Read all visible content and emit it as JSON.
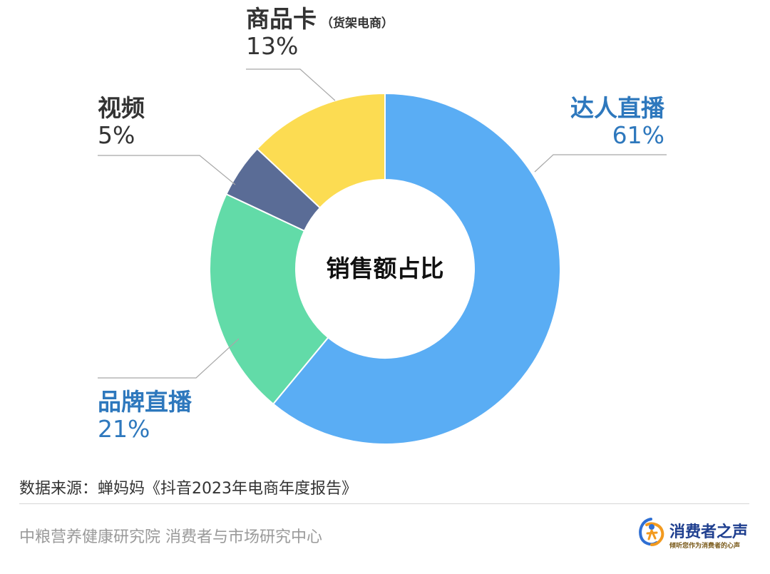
{
  "chart_data": {
    "type": "pie",
    "variant": "donut",
    "center_label": "销售额占比",
    "slices": [
      {
        "name": "达人直播",
        "value": 61,
        "label": "61%",
        "color": "#5aadf4",
        "label_color": "#2e78bd"
      },
      {
        "name": "品牌直播",
        "value": 21,
        "label": "21%",
        "color": "#62dba8",
        "label_color": "#2e78bd"
      },
      {
        "name": "视频",
        "value": 5,
        "label": "5%",
        "color": "#5a6c96",
        "label_color": "#333333"
      },
      {
        "name": "商品卡",
        "note": "（货架电商）",
        "value": 13,
        "label": "13%",
        "color": "#fcdc52",
        "label_color": "#333333"
      }
    ]
  },
  "source": "数据来源：蝉妈妈《抖音2023年电商年度报告》",
  "footer": {
    "org": "中粮营养健康研究院 消费者与市场研究中心",
    "brand_title": "消费者之声",
    "brand_tagline": "倾听您作为消费者的心声"
  }
}
